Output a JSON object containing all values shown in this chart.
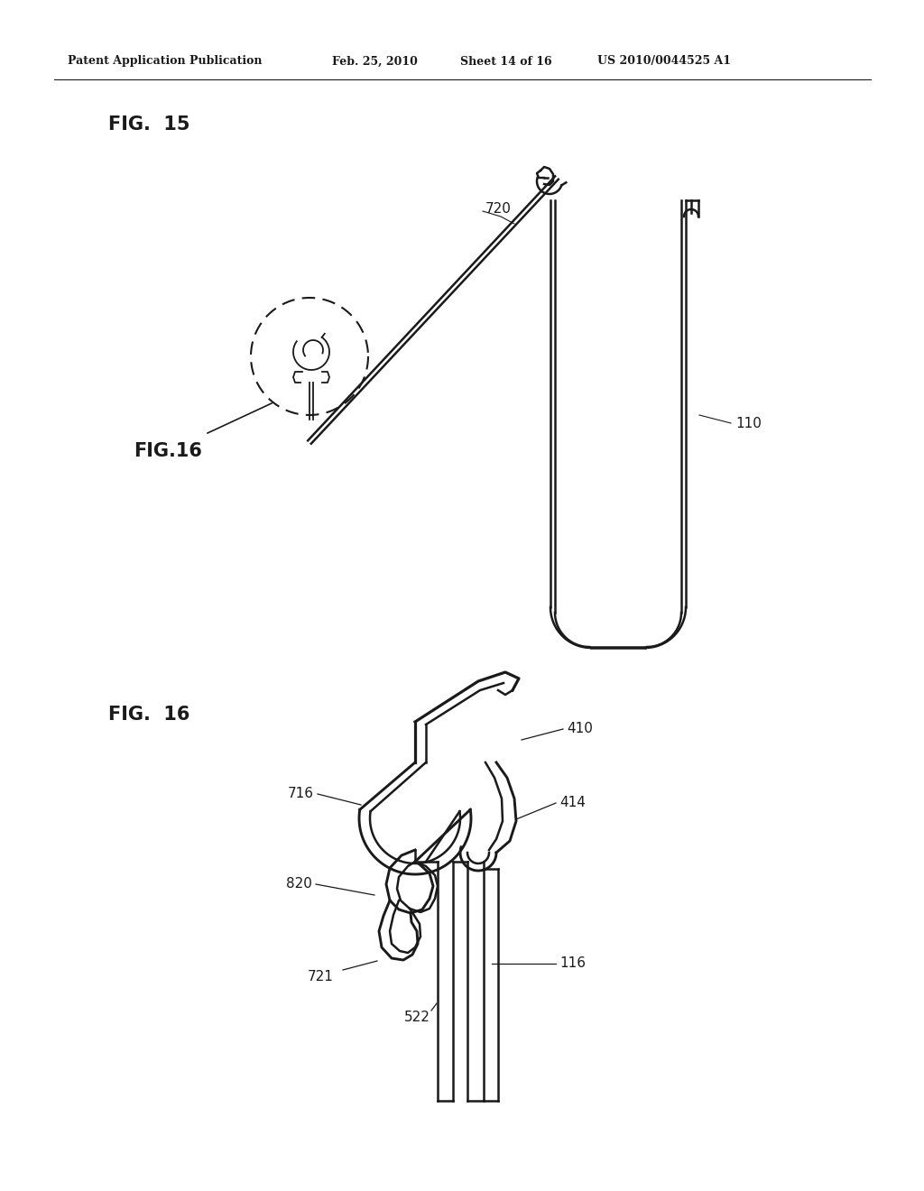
{
  "bg_color": "#ffffff",
  "line_color": "#1a1a1a",
  "header_left": "Patent Application Publication",
  "header_date": "Feb. 25, 2010",
  "header_sheet": "Sheet 14 of 16",
  "header_patent": "US 2010/0044525 A1",
  "fig15_label": "FIG.  15",
  "fig16_callout_label": "FIG.16",
  "fig16_label": "FIG.  16",
  "label_720": "720",
  "label_110": "110",
  "label_410": "410",
  "label_414": "414",
  "label_716": "716",
  "label_820": "820",
  "label_721": "721",
  "label_522": "522",
  "label_116": "116"
}
